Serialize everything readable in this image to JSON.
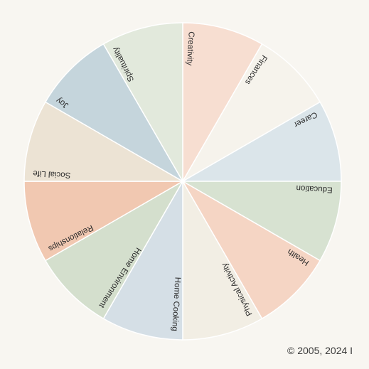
{
  "wheel": {
    "segments": [
      {
        "label": "Creativity",
        "color": "#f7ded1"
      },
      {
        "label": "Finances",
        "color": "#f6f3ec"
      },
      {
        "label": "Career",
        "color": "#dbe5ea"
      },
      {
        "label": "Education",
        "color": "#d7e2d1"
      },
      {
        "label": "Health",
        "color": "#f5d5c4"
      },
      {
        "label": "Physical Activity",
        "color": "#f2eee4"
      },
      {
        "label": "Home Cooking",
        "color": "#d5dfe6"
      },
      {
        "label": "Home Environment",
        "color": "#d4dfcd"
      },
      {
        "label": "Relationships",
        "color": "#f1c8b1"
      },
      {
        "label": "Social Life",
        "color": "#ece3d4"
      },
      {
        "label": "Joy",
        "color": "#c5d5dc"
      },
      {
        "label": "Spirituality",
        "color": "#e2e9dc"
      }
    ],
    "divider_color": "#ffffff"
  },
  "footer": {
    "copyright": "© 2005, 2024 I"
  }
}
